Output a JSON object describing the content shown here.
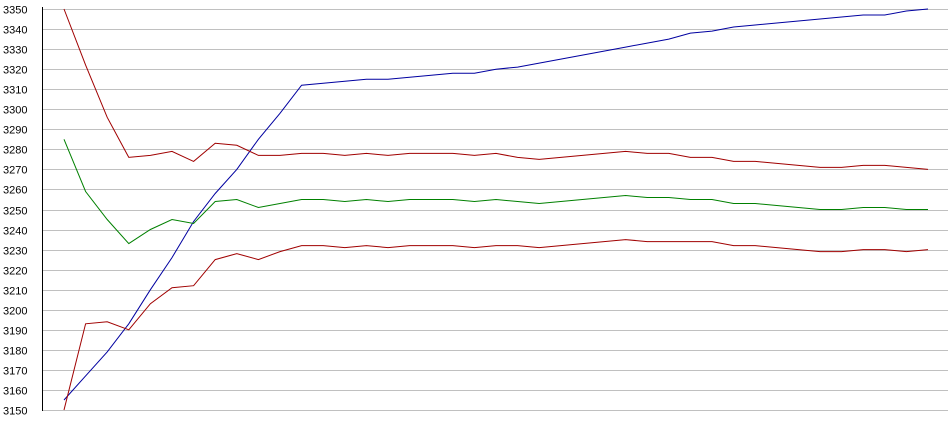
{
  "chart_data": {
    "type": "line",
    "title": "",
    "xlabel": "",
    "ylabel": "",
    "grid": true,
    "legend": "none",
    "ylim": [
      3150,
      3350
    ],
    "yticks": [
      3150,
      3160,
      3170,
      3180,
      3190,
      3200,
      3210,
      3220,
      3230,
      3240,
      3250,
      3260,
      3270,
      3280,
      3290,
      3300,
      3310,
      3320,
      3330,
      3340,
      3350
    ],
    "xlim": [
      0,
      40
    ],
    "colors": {
      "grid": "#c0c0c0",
      "axis": "#000000",
      "blue_series": "#0000a0",
      "red_series": "#a00000",
      "green_series": "#008000"
    },
    "series": [
      {
        "color": "blue_series",
        "points": [
          [
            0,
            3155
          ],
          [
            1,
            3167
          ],
          [
            2,
            3179
          ],
          [
            3,
            3193
          ],
          [
            4,
            3210
          ],
          [
            5,
            3226
          ],
          [
            6,
            3244
          ],
          [
            7,
            3258
          ],
          [
            8,
            3270
          ],
          [
            9,
            3285
          ],
          [
            10,
            3298
          ],
          [
            11,
            3312
          ],
          [
            12,
            3313
          ],
          [
            13,
            3314
          ],
          [
            14,
            3315
          ],
          [
            15,
            3315
          ],
          [
            16,
            3316
          ],
          [
            17,
            3317
          ],
          [
            18,
            3318
          ],
          [
            19,
            3318
          ],
          [
            20,
            3320
          ],
          [
            21,
            3321
          ],
          [
            22,
            3323
          ],
          [
            23,
            3325
          ],
          [
            24,
            3327
          ],
          [
            25,
            3329
          ],
          [
            26,
            3331
          ],
          [
            27,
            3333
          ],
          [
            28,
            3335
          ],
          [
            29,
            3338
          ],
          [
            30,
            3339
          ],
          [
            31,
            3341
          ],
          [
            32,
            3342
          ],
          [
            33,
            3343
          ],
          [
            34,
            3344
          ],
          [
            35,
            3345
          ],
          [
            36,
            3346
          ],
          [
            37,
            3347
          ],
          [
            38,
            3347
          ],
          [
            39,
            3349
          ],
          [
            40,
            3350
          ]
        ]
      },
      {
        "color": "red_series",
        "points": [
          [
            0,
            3350
          ],
          [
            1,
            3322
          ],
          [
            2,
            3296
          ],
          [
            3,
            3276
          ],
          [
            4,
            3277
          ],
          [
            5,
            3279
          ],
          [
            6,
            3274
          ],
          [
            7,
            3283
          ],
          [
            8,
            3282
          ],
          [
            9,
            3277
          ],
          [
            10,
            3277
          ],
          [
            11,
            3278
          ],
          [
            12,
            3278
          ],
          [
            13,
            3277
          ],
          [
            14,
            3278
          ],
          [
            15,
            3277
          ],
          [
            16,
            3278
          ],
          [
            17,
            3278
          ],
          [
            18,
            3278
          ],
          [
            19,
            3277
          ],
          [
            20,
            3278
          ],
          [
            21,
            3276
          ],
          [
            22,
            3275
          ],
          [
            23,
            3276
          ],
          [
            24,
            3277
          ],
          [
            25,
            3278
          ],
          [
            26,
            3279
          ],
          [
            27,
            3278
          ],
          [
            28,
            3278
          ],
          [
            29,
            3276
          ],
          [
            30,
            3276
          ],
          [
            31,
            3274
          ],
          [
            32,
            3274
          ],
          [
            33,
            3273
          ],
          [
            34,
            3272
          ],
          [
            35,
            3271
          ],
          [
            36,
            3271
          ],
          [
            37,
            3272
          ],
          [
            38,
            3272
          ],
          [
            39,
            3271
          ],
          [
            40,
            3270
          ]
        ]
      },
      {
        "color": "green_series",
        "points": [
          [
            0,
            3285
          ],
          [
            1,
            3259
          ],
          [
            2,
            3245
          ],
          [
            3,
            3233
          ],
          [
            4,
            3240
          ],
          [
            5,
            3245
          ],
          [
            6,
            3243
          ],
          [
            7,
            3254
          ],
          [
            8,
            3255
          ],
          [
            9,
            3251
          ],
          [
            10,
            3253
          ],
          [
            11,
            3255
          ],
          [
            12,
            3255
          ],
          [
            13,
            3254
          ],
          [
            14,
            3255
          ],
          [
            15,
            3254
          ],
          [
            16,
            3255
          ],
          [
            17,
            3255
          ],
          [
            18,
            3255
          ],
          [
            19,
            3254
          ],
          [
            20,
            3255
          ],
          [
            21,
            3254
          ],
          [
            22,
            3253
          ],
          [
            23,
            3254
          ],
          [
            24,
            3255
          ],
          [
            25,
            3256
          ],
          [
            26,
            3257
          ],
          [
            27,
            3256
          ],
          [
            28,
            3256
          ],
          [
            29,
            3255
          ],
          [
            30,
            3255
          ],
          [
            31,
            3253
          ],
          [
            32,
            3253
          ],
          [
            33,
            3252
          ],
          [
            34,
            3251
          ],
          [
            35,
            3250
          ],
          [
            36,
            3250
          ],
          [
            37,
            3251
          ],
          [
            38,
            3251
          ],
          [
            39,
            3250
          ],
          [
            40,
            3250
          ]
        ]
      },
      {
        "color": "red_series",
        "points": [
          [
            0,
            3150
          ],
          [
            1,
            3193
          ],
          [
            2,
            3194
          ],
          [
            3,
            3190
          ],
          [
            4,
            3203
          ],
          [
            5,
            3211
          ],
          [
            6,
            3212
          ],
          [
            7,
            3225
          ],
          [
            8,
            3228
          ],
          [
            9,
            3225
          ],
          [
            10,
            3229
          ],
          [
            11,
            3232
          ],
          [
            12,
            3232
          ],
          [
            13,
            3231
          ],
          [
            14,
            3232
          ],
          [
            15,
            3231
          ],
          [
            16,
            3232
          ],
          [
            17,
            3232
          ],
          [
            18,
            3232
          ],
          [
            19,
            3231
          ],
          [
            20,
            3232
          ],
          [
            21,
            3232
          ],
          [
            22,
            3231
          ],
          [
            23,
            3232
          ],
          [
            24,
            3233
          ],
          [
            25,
            3234
          ],
          [
            26,
            3235
          ],
          [
            27,
            3234
          ],
          [
            28,
            3234
          ],
          [
            29,
            3234
          ],
          [
            30,
            3234
          ],
          [
            31,
            3232
          ],
          [
            32,
            3232
          ],
          [
            33,
            3231
          ],
          [
            34,
            3230
          ],
          [
            35,
            3229
          ],
          [
            36,
            3229
          ],
          [
            37,
            3230
          ],
          [
            38,
            3230
          ],
          [
            39,
            3229
          ],
          [
            40,
            3230
          ]
        ]
      }
    ]
  }
}
